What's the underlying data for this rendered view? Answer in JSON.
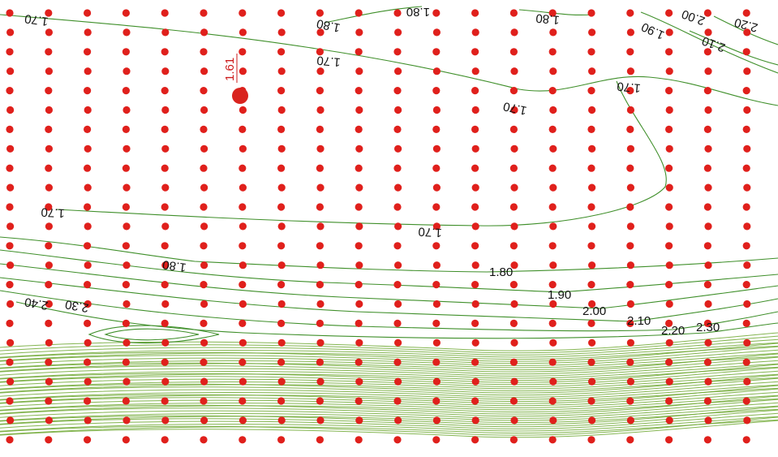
{
  "colors": {
    "grid_point": "#e0201c",
    "contour": "#3f8f2a",
    "band": "#7bb534",
    "label": "#111111",
    "spot": "#d9231e"
  },
  "spot_height": {
    "value": "1.61"
  },
  "contour_labels": [
    {
      "text": "1.70",
      "flipped": true
    },
    {
      "text": "1.80",
      "flipped": true
    },
    {
      "text": "1.70",
      "flipped": true
    },
    {
      "text": "1.80",
      "flipped": true
    },
    {
      "text": "1.90",
      "flipped": true
    },
    {
      "text": "2.00",
      "flipped": true
    },
    {
      "text": "2.10",
      "flipped": true
    },
    {
      "text": "2.20",
      "flipped": true
    },
    {
      "text": "1.80",
      "flipped": true
    },
    {
      "text": "1.70",
      "flipped": true
    },
    {
      "text": "1.70",
      "flipped": true
    },
    {
      "text": "1.70",
      "flipped": true
    },
    {
      "text": "1.70",
      "flipped": true
    },
    {
      "text": "1.80",
      "flipped": true
    },
    {
      "text": "1.80",
      "flipped": false
    },
    {
      "text": "1.90",
      "flipped": false
    },
    {
      "text": "2.00",
      "flipped": false
    },
    {
      "text": "2.10",
      "flipped": false
    },
    {
      "text": "2.20",
      "flipped": false
    },
    {
      "text": "2.30",
      "flipped": false
    },
    {
      "text": "2.30",
      "flipped": true
    },
    {
      "text": "2.40",
      "flipped": true
    }
  ]
}
